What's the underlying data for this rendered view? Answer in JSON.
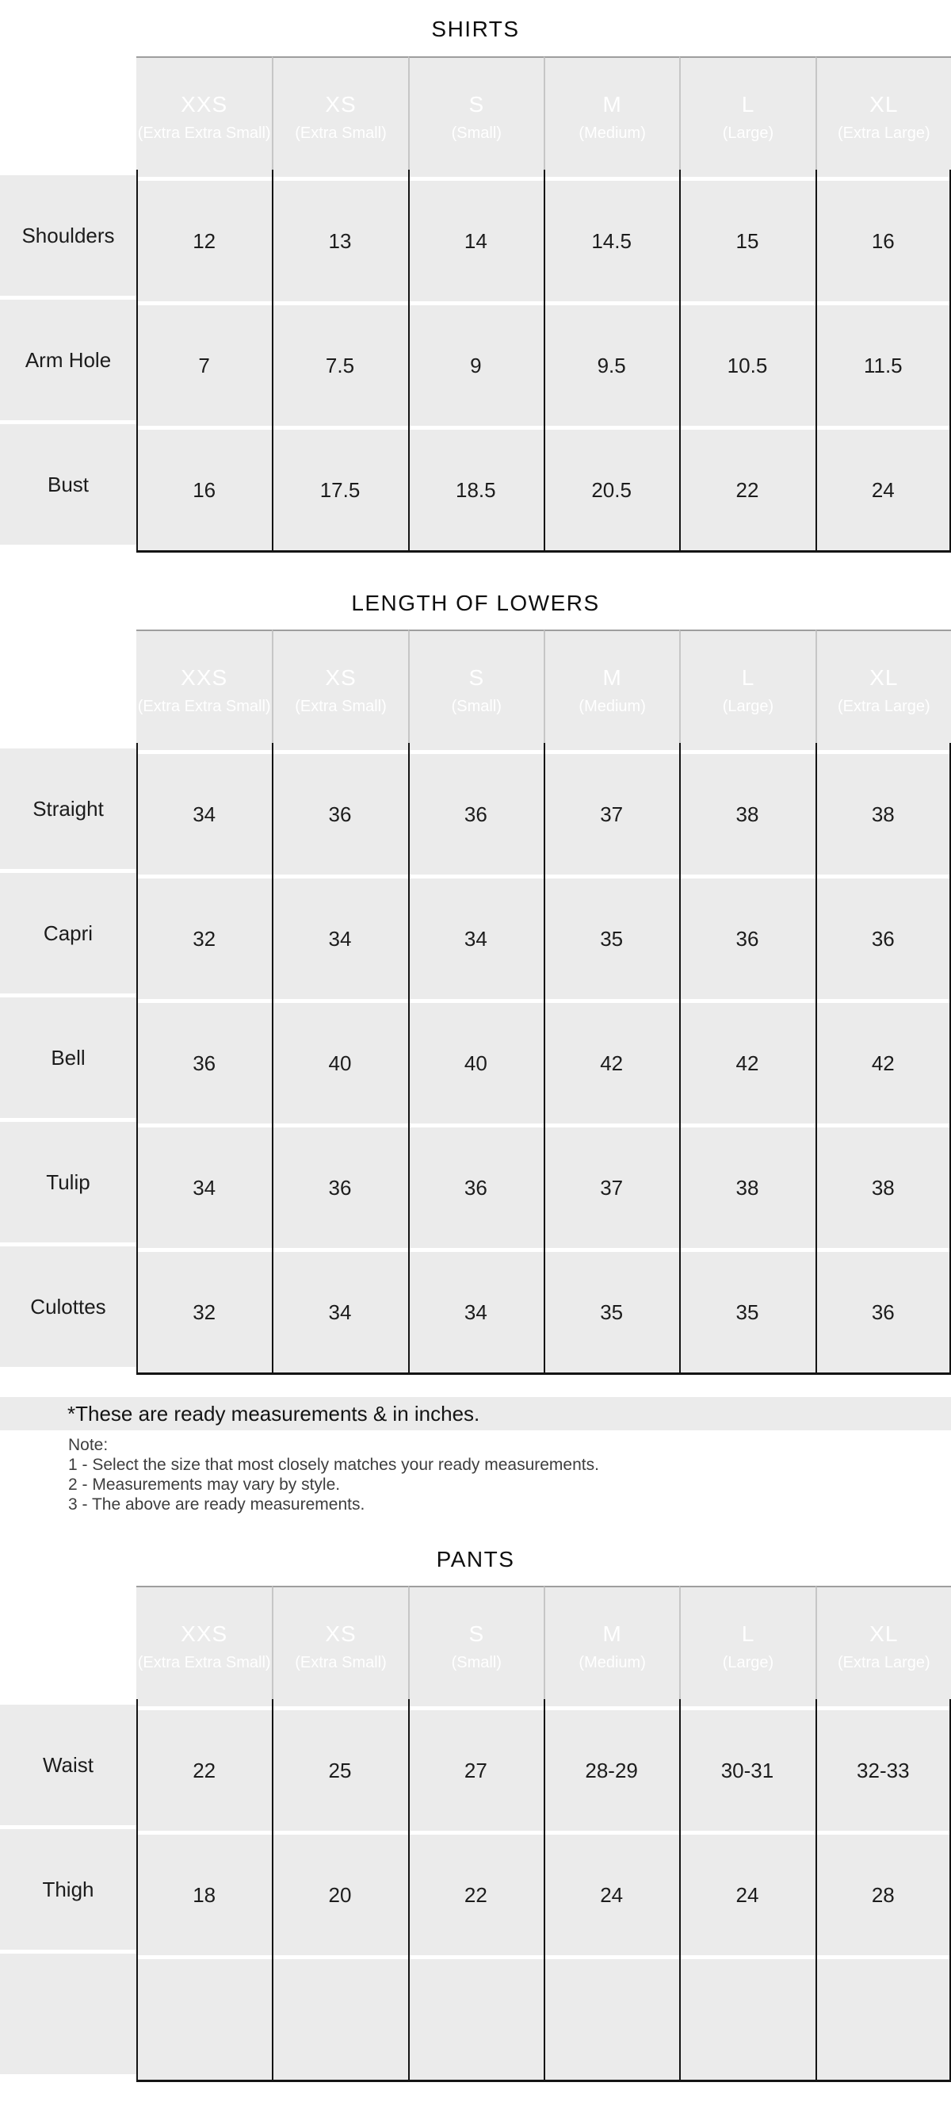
{
  "colors": {
    "header_bg": "#2b2b2b",
    "header_text": "#ffffff",
    "cell_bg": "#ebebeb",
    "border": "#141414",
    "header_top_line": "#9e9e9e",
    "note_text": "#3e3e3e"
  },
  "sizes": [
    {
      "code": "XXS",
      "full": "(Extra Extra Small)"
    },
    {
      "code": "XS",
      "full": "(Extra Small)"
    },
    {
      "code": "S",
      "full": "(Small)"
    },
    {
      "code": "M",
      "full": "(Medium)"
    },
    {
      "code": "L",
      "full": "(Large)"
    },
    {
      "code": "XL",
      "full": "(Extra Large)"
    }
  ],
  "shirts": {
    "title": "SHIRTS",
    "rows": [
      {
        "label": "Shoulders",
        "values": [
          "12",
          "13",
          "14",
          "14.5",
          "15",
          "16"
        ]
      },
      {
        "label": "Arm Hole",
        "values": [
          "7",
          "7.5",
          "9",
          "9.5",
          "10.5",
          "11.5"
        ]
      },
      {
        "label": "Bust",
        "values": [
          "16",
          "17.5",
          "18.5",
          "20.5",
          "22",
          "24"
        ]
      }
    ]
  },
  "lowers": {
    "title": "LENGTH OF LOWERS",
    "rows": [
      {
        "label": "Straight",
        "values": [
          "34",
          "36",
          "36",
          "37",
          "38",
          "38"
        ]
      },
      {
        "label": "Capri",
        "values": [
          "32",
          "34",
          "34",
          "35",
          "36",
          "36"
        ]
      },
      {
        "label": "Bell",
        "values": [
          "36",
          "40",
          "40",
          "42",
          "42",
          "42"
        ]
      },
      {
        "label": "Tulip",
        "values": [
          "34",
          "36",
          "36",
          "37",
          "38",
          "38"
        ]
      },
      {
        "label": "Culottes",
        "values": [
          "32",
          "34",
          "34",
          "35",
          "35",
          "36"
        ]
      }
    ]
  },
  "pants": {
    "title": "PANTS",
    "rows": [
      {
        "label": "Waist",
        "values": [
          "22",
          "25",
          "27",
          "28-29",
          "30-31",
          "32-33"
        ]
      },
      {
        "label": "Thigh",
        "values": [
          "18",
          "20",
          "22",
          "24",
          "24",
          "28"
        ]
      },
      {
        "label": "",
        "values": [
          "",
          "",
          "",
          "",
          "",
          ""
        ]
      }
    ]
  },
  "footnote": "*These are ready measurements & in inches.",
  "notes": {
    "heading": "Note:",
    "items": [
      "1 - Select the size that most closely matches your ready measurements.",
      "2 - Measurements may vary by style.",
      "3 - The above are ready measurements."
    ]
  }
}
